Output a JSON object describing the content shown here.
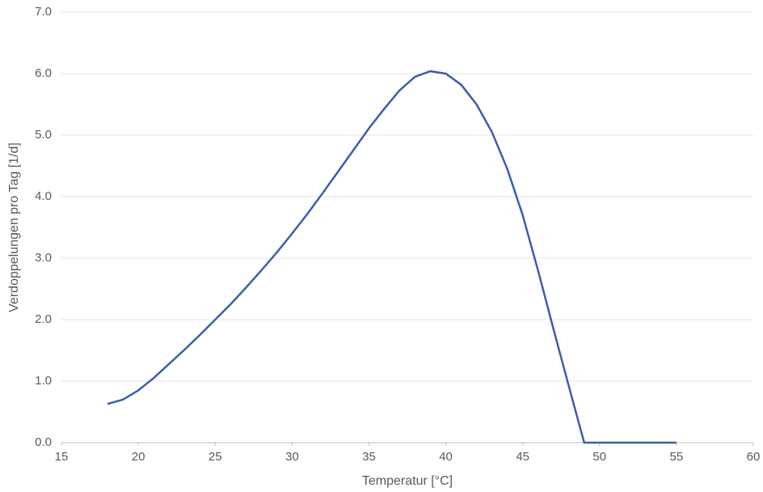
{
  "chart_data": {
    "type": "line",
    "x_label": "Temperatur [°C]",
    "y_label": "Verdoppelungen pro Tag [1/d]",
    "x": [
      18,
      19,
      20,
      21,
      22,
      23,
      24,
      25,
      26,
      27,
      28,
      29,
      30,
      31,
      32,
      33,
      34,
      35,
      36,
      37,
      38,
      39,
      40,
      41,
      42,
      43,
      44,
      45,
      46,
      47,
      48,
      49,
      50,
      51,
      52,
      53,
      54,
      55
    ],
    "series": [
      {
        "color": "#3c5ea8",
        "values": [
          0.63,
          0.7,
          0.85,
          1.05,
          1.28,
          1.51,
          1.75,
          2.0,
          2.25,
          2.52,
          2.8,
          3.09,
          3.4,
          3.72,
          4.06,
          4.41,
          4.76,
          5.11,
          5.43,
          5.73,
          5.95,
          6.04,
          6.0,
          5.82,
          5.5,
          5.05,
          4.45,
          3.7,
          2.8,
          1.85,
          0.92,
          0,
          0,
          0,
          0,
          0,
          0,
          0
        ]
      }
    ],
    "xlim": [
      15,
      60
    ],
    "xticks": [
      15,
      20,
      25,
      30,
      35,
      40,
      45,
      50,
      55,
      60
    ],
    "ylim": [
      0,
      7
    ],
    "yticks": [
      {
        "value": 0,
        "label": "0.0"
      },
      {
        "value": 1,
        "label": "1.0"
      },
      {
        "value": 2,
        "label": "2.0"
      },
      {
        "value": 3,
        "label": "3.0"
      },
      {
        "value": 4,
        "label": "4.0"
      },
      {
        "value": 5,
        "label": "5.0"
      },
      {
        "value": 6,
        "label": "6.0"
      },
      {
        "value": 7,
        "label": "7.0"
      }
    ],
    "grid": true
  }
}
